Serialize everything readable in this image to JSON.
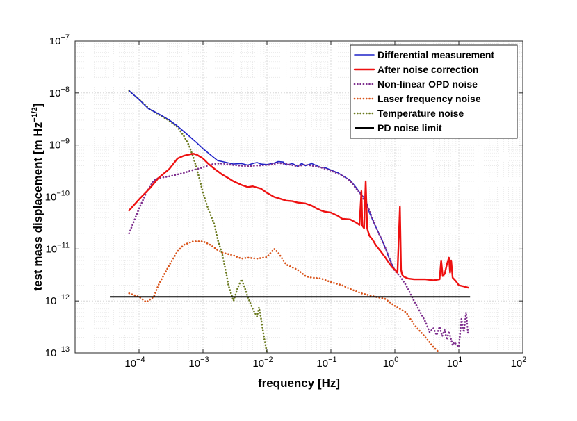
{
  "chart_data": {
    "type": "line",
    "x_scale": "log",
    "y_scale": "log",
    "xlim": [
      1e-05,
      100
    ],
    "ylim": [
      1e-13,
      1e-07
    ],
    "xlabel": "frequency [Hz]",
    "ylabel_main": "test mass displacement [m Hz",
    "ylabel_exp": "−1/2",
    "ylabel_end": "]",
    "grid": true,
    "legend_position": "top-right",
    "x_ticks": [
      {
        "value": 0.0001,
        "base": "10",
        "exp": "−4"
      },
      {
        "value": 0.001,
        "base": "10",
        "exp": "−3"
      },
      {
        "value": 0.01,
        "base": "10",
        "exp": "−2"
      },
      {
        "value": 0.1,
        "base": "10",
        "exp": "−1"
      },
      {
        "value": 1,
        "base": "10",
        "exp": "0"
      },
      {
        "value": 10,
        "base": "10",
        "exp": "1"
      },
      {
        "value": 100,
        "base": "10",
        "exp": "2"
      }
    ],
    "y_ticks": [
      {
        "value": 1e-13,
        "base": "10",
        "exp": "−13"
      },
      {
        "value": 1e-12,
        "base": "10",
        "exp": "−12"
      },
      {
        "value": 1e-11,
        "base": "10",
        "exp": "−11"
      },
      {
        "value": 1e-10,
        "base": "10",
        "exp": "−10"
      },
      {
        "value": 1e-09,
        "base": "10",
        "exp": "−9"
      },
      {
        "value": 1e-08,
        "base": "10",
        "exp": "−8"
      },
      {
        "value": 1e-07,
        "base": "10",
        "exp": "−7"
      }
    ],
    "series": [
      {
        "name": "Differential measurement",
        "color": "#1f22c8",
        "style": "solid",
        "x": [
          7e-05,
          0.0001,
          0.00014,
          0.0002,
          0.0003,
          0.0004,
          0.0006,
          0.0008,
          0.001,
          0.0013,
          0.0017,
          0.002,
          0.003,
          0.004,
          0.005,
          0.006,
          0.007,
          0.008,
          0.01,
          0.013,
          0.015,
          0.018,
          0.02,
          0.025,
          0.03,
          0.035,
          0.04,
          0.05,
          0.06,
          0.07,
          0.08,
          0.1,
          0.13,
          0.15,
          0.2,
          0.25,
          0.3,
          0.35,
          0.4,
          0.5,
          0.6,
          0.7,
          0.8,
          0.9,
          1.0
        ],
        "y": [
          1.1e-08,
          7.5e-09,
          5e-09,
          4e-09,
          3e-09,
          2.3e-09,
          1.5e-09,
          1.1e-09,
          8.5e-10,
          6.5e-10,
          5e-10,
          4.8e-10,
          4.3e-10,
          4.4e-10,
          4.1e-10,
          4.4e-10,
          4.6e-10,
          4.3e-10,
          4.2e-10,
          4.5e-10,
          4.8e-10,
          4.7e-10,
          4.1e-10,
          4.4e-10,
          3.9e-10,
          4.4e-10,
          4e-10,
          4.4e-10,
          4e-10,
          3.7e-10,
          3.7e-10,
          3.3e-10,
          2.9e-10,
          2.6e-10,
          2.1e-10,
          1.5e-10,
          1.1e-10,
          9e-11,
          5e-11,
          2.7e-11,
          1.7e-11,
          1.1e-11,
          7e-12,
          5e-12,
          4e-12
        ]
      },
      {
        "name": "After noise correction",
        "color": "#ee1111",
        "style": "solid",
        "x": [
          7e-05,
          0.0001,
          0.00015,
          0.0002,
          0.0003,
          0.0004,
          0.0005,
          0.0007,
          0.0008,
          0.001,
          0.0012,
          0.0015,
          0.002,
          0.0025,
          0.003,
          0.004,
          0.005,
          0.006,
          0.008,
          0.01,
          0.013,
          0.015,
          0.02,
          0.025,
          0.03,
          0.04,
          0.05,
          0.06,
          0.07,
          0.08,
          0.1,
          0.13,
          0.15,
          0.2,
          0.25,
          0.28,
          0.3,
          0.31,
          0.33,
          0.35,
          0.37,
          0.38,
          0.4,
          0.45,
          0.5,
          0.6,
          0.7,
          0.8,
          0.9,
          1.0,
          1.1,
          1.2,
          1.25,
          1.3,
          1.35,
          1.4,
          1.6,
          2,
          3,
          4,
          5,
          5.3,
          5.6,
          6,
          6.5,
          7,
          7.3,
          7.6,
          8,
          9,
          10,
          12,
          14
        ],
        "y": [
          5.5e-11,
          9e-11,
          1.5e-10,
          2.3e-10,
          3.5e-10,
          5.5e-10,
          6.2e-10,
          6.8e-10,
          6.5e-10,
          5.5e-10,
          4.4e-10,
          3.5e-10,
          2.7e-10,
          2.3e-10,
          2e-10,
          1.7e-10,
          1.55e-10,
          1.6e-10,
          1.45e-10,
          1.2e-10,
          1e-10,
          9.5e-11,
          8.5e-11,
          8.3e-11,
          7.8e-11,
          7.5e-11,
          6.8e-11,
          6e-11,
          5.5e-11,
          5.2e-11,
          5e-11,
          4.3e-11,
          3.8e-11,
          3.7e-11,
          3.2e-11,
          2.9e-11,
          1.3e-10,
          2.8e-11,
          2.5e-11,
          2e-10,
          2.5e-11,
          2.2e-11,
          1.8e-11,
          1.5e-11,
          1.2e-11,
          9e-12,
          7e-12,
          5.5e-12,
          4.5e-12,
          4e-12,
          3.5e-12,
          6.5e-11,
          4e-12,
          3.2e-12,
          3e-12,
          2.9e-12,
          2.7e-12,
          2.6e-12,
          2.6e-12,
          2.5e-12,
          2.6e-12,
          6e-12,
          3e-12,
          3.3e-12,
          5e-12,
          6.8e-12,
          3.5e-12,
          6e-12,
          2.8e-12,
          2.4e-12,
          2e-12,
          1.9e-12,
          1.8e-12
        ]
      },
      {
        "name": "Non-linear OPD noise",
        "color": "#7e2f8e",
        "style": "dotted",
        "x": [
          7e-05,
          0.0001,
          0.00013,
          0.00017,
          0.0002,
          0.0003,
          0.0005,
          0.0007,
          0.001,
          0.0013,
          0.0017,
          0.002,
          0.003,
          0.005,
          0.007,
          0.01,
          0.013,
          0.015,
          0.02,
          0.03,
          0.04,
          0.05,
          0.07,
          0.1,
          0.15,
          0.2,
          0.3,
          0.4,
          0.5,
          0.7,
          0.9,
          1.0,
          1.2,
          1.5,
          2,
          2.5,
          3,
          3.5,
          4,
          4.5,
          5,
          5.5,
          6,
          6.5,
          7,
          8,
          8.5,
          10,
          11,
          12,
          13,
          14
        ],
        "y": [
          2e-11,
          6e-11,
          1.2e-10,
          2.1e-10,
          2.3e-10,
          2.5e-10,
          2.9e-10,
          3.3e-10,
          3.7e-10,
          4.2e-10,
          4.4e-10,
          4.4e-10,
          4.1e-10,
          3.9e-10,
          4e-10,
          4.1e-10,
          4.3e-10,
          4.5e-10,
          4.3e-10,
          3.9e-10,
          4.2e-10,
          4e-10,
          3.7e-10,
          3.2e-10,
          2.6e-10,
          2e-10,
          1.1e-10,
          5.5e-11,
          2.7e-11,
          1.1e-11,
          5e-12,
          3.8e-12,
          3e-12,
          2e-12,
          1e-12,
          6e-13,
          4e-13,
          2.5e-13,
          3e-13,
          2.2e-13,
          3.2e-13,
          2.1e-13,
          2.8e-13,
          1.8e-13,
          2.6e-13,
          1.4e-13,
          1.6e-13,
          1.3e-13,
          4.5e-13,
          2.5e-13,
          6e-13,
          2.2e-13
        ]
      },
      {
        "name": "Laser frequency noise",
        "color": "#d95319",
        "style": "dotted",
        "x": [
          7e-05,
          0.0001,
          0.00013,
          0.00017,
          0.0002,
          0.0003,
          0.0004,
          0.0005,
          0.0007,
          0.001,
          0.0013,
          0.0017,
          0.002,
          0.003,
          0.004,
          0.005,
          0.007,
          0.01,
          0.013,
          0.015,
          0.02,
          0.03,
          0.04,
          0.05,
          0.07,
          0.1,
          0.15,
          0.2,
          0.3,
          0.5,
          0.7,
          1.0,
          1.5,
          2,
          3,
          4,
          5
        ],
        "y": [
          1.4e-12,
          1.2e-12,
          9.5e-13,
          1.2e-12,
          2e-12,
          5e-12,
          9e-12,
          1.2e-11,
          1.4e-11,
          1.4e-11,
          1.2e-11,
          9.5e-12,
          8.5e-12,
          7.5e-12,
          6.5e-12,
          6.8e-12,
          6.5e-12,
          7e-12,
          1e-11,
          8.5e-12,
          5e-12,
          4e-12,
          3e-12,
          2.8e-12,
          2.7e-12,
          2.3e-12,
          2e-12,
          1.7e-12,
          1.4e-12,
          1.2e-12,
          1.1e-12,
          8e-13,
          6e-13,
          3.5e-13,
          2e-13,
          1.3e-13,
          1e-13
        ]
      },
      {
        "name": "Temperature noise",
        "color": "#6b7a1f",
        "style": "dotted",
        "x": [
          7e-05,
          0.0001,
          0.00015,
          0.0002,
          0.0003,
          0.0004,
          0.0005,
          0.0006,
          0.0007,
          0.0008,
          0.0009,
          0.001,
          0.0012,
          0.0015,
          0.0017,
          0.002,
          0.0023,
          0.0025,
          0.0028,
          0.003,
          0.0035,
          0.004,
          0.0045,
          0.005,
          0.006,
          0.007,
          0.0075,
          0.008,
          0.009,
          0.01
        ],
        "y": [
          1.1e-08,
          7.5e-09,
          4.8e-09,
          3.9e-09,
          2.9e-09,
          2.2e-09,
          1.5e-09,
          1e-09,
          6e-10,
          3.5e-10,
          2e-10,
          1.2e-10,
          6e-11,
          3e-11,
          1.5e-11,
          8e-12,
          3.5e-12,
          2e-12,
          1.3e-12,
          1e-12,
          1.8e-12,
          2.6e-12,
          1.8e-12,
          1.2e-12,
          7e-13,
          5e-13,
          7.5e-13,
          5e-13,
          2e-13,
          1e-13
        ]
      },
      {
        "name": "PD noise limit",
        "color": "#000000",
        "style": "solid",
        "x": [
          3.5e-05,
          15
        ],
        "y": [
          1.2e-12,
          1.2e-12
        ]
      }
    ]
  }
}
